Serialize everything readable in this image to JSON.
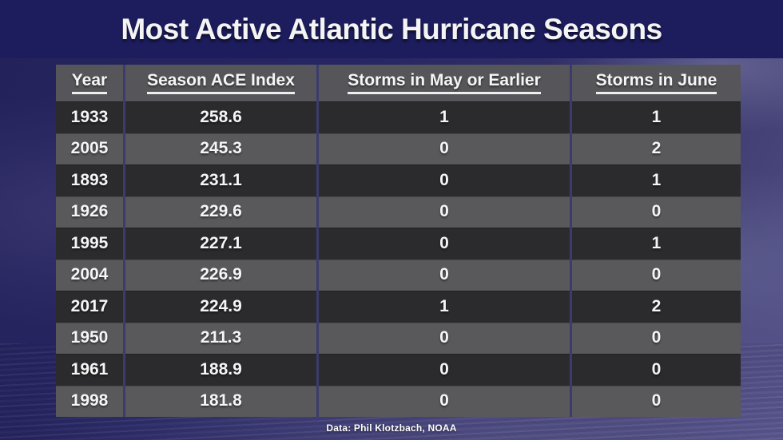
{
  "title": "Most Active Atlantic Hurricane Seasons",
  "source_note": "Data: Phil Klotzbach, NOAA",
  "colors": {
    "title_band": "#1d1d5e",
    "header_row": "#56565a",
    "row_dark": "#2b2b2e",
    "row_light": "#59595c",
    "separator": "#3b3b6e",
    "text": "#f5f5f5",
    "background_top": "#232259",
    "background_bottom_right": "#54528a"
  },
  "chart_data": {
    "type": "table",
    "title": "Most Active Atlantic Hurricane Seasons",
    "columns": [
      "Year",
      "Season ACE Index",
      "Storms in May or Earlier",
      "Storms in June"
    ],
    "rows": [
      [
        "1933",
        "258.6",
        "1",
        "1"
      ],
      [
        "2005",
        "245.3",
        "0",
        "2"
      ],
      [
        "1893",
        "231.1",
        "0",
        "1"
      ],
      [
        "1926",
        "229.6",
        "0",
        "0"
      ],
      [
        "1995",
        "227.1",
        "0",
        "1"
      ],
      [
        "2004",
        "226.9",
        "0",
        "0"
      ],
      [
        "2017",
        "224.9",
        "1",
        "2"
      ],
      [
        "1950",
        "211.3",
        "0",
        "0"
      ],
      [
        "1961",
        "188.9",
        "0",
        "0"
      ],
      [
        "1998",
        "181.8",
        "0",
        "0"
      ]
    ],
    "source": "Data: Phil Klotzbach, NOAA",
    "layout": {
      "legend": "none",
      "grid": "column-separators",
      "row_striping": "alternating dark/light starting dark"
    }
  }
}
